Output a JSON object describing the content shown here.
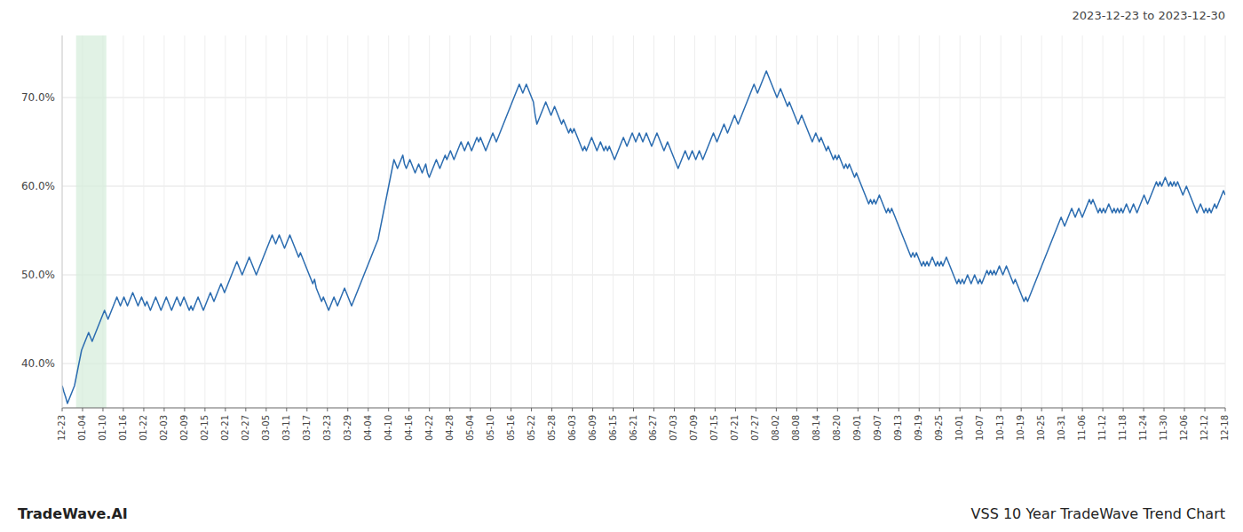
{
  "chart_data": {
    "type": "line",
    "title": "2023-12-23 to 2023-12-30",
    "annotations": [
      "TradeWave.AI",
      "VSS 10 Year TradeWave Trend Chart"
    ],
    "color": "#2b6cb0",
    "grid": true,
    "xlim": [
      0,
      659
    ],
    "xticks": [
      {
        "value": 0,
        "label": "12-23"
      },
      {
        "value": 11.56,
        "label": "01-04"
      },
      {
        "value": 23.12,
        "label": "01-10"
      },
      {
        "value": 34.68,
        "label": "01-16"
      },
      {
        "value": 46.25,
        "label": "01-22"
      },
      {
        "value": 57.81,
        "label": "02-03"
      },
      {
        "value": 69.37,
        "label": "02-09"
      },
      {
        "value": 80.93,
        "label": "02-15"
      },
      {
        "value": 92.49,
        "label": "02-21"
      },
      {
        "value": 104.05,
        "label": "02-27"
      },
      {
        "value": 115.61,
        "label": "03-05"
      },
      {
        "value": 127.18,
        "label": "03-11"
      },
      {
        "value": 138.74,
        "label": "03-17"
      },
      {
        "value": 150.3,
        "label": "03-23"
      },
      {
        "value": 161.86,
        "label": "03-29"
      },
      {
        "value": 173.42,
        "label": "04-04"
      },
      {
        "value": 184.98,
        "label": "04-10"
      },
      {
        "value": 196.54,
        "label": "04-16"
      },
      {
        "value": 208.11,
        "label": "04-22"
      },
      {
        "value": 219.67,
        "label": "04-28"
      },
      {
        "value": 231.23,
        "label": "05-04"
      },
      {
        "value": 242.79,
        "label": "05-10"
      },
      {
        "value": 254.35,
        "label": "05-16"
      },
      {
        "value": 265.91,
        "label": "05-22"
      },
      {
        "value": 277.47,
        "label": "05-28"
      },
      {
        "value": 289.04,
        "label": "06-03"
      },
      {
        "value": 300.6,
        "label": "06-09"
      },
      {
        "value": 312.16,
        "label": "06-15"
      },
      {
        "value": 323.72,
        "label": "06-21"
      },
      {
        "value": 335.28,
        "label": "06-27"
      },
      {
        "value": 346.84,
        "label": "07-03"
      },
      {
        "value": 358.4,
        "label": "07-09"
      },
      {
        "value": 369.96,
        "label": "07-15"
      },
      {
        "value": 381.53,
        "label": "07-21"
      },
      {
        "value": 393.09,
        "label": "07-27"
      },
      {
        "value": 404.65,
        "label": "08-02"
      },
      {
        "value": 416.21,
        "label": "08-08"
      },
      {
        "value": 427.77,
        "label": "08-14"
      },
      {
        "value": 439.33,
        "label": "08-20"
      },
      {
        "value": 450.89,
        "label": "09-01"
      },
      {
        "value": 462.46,
        "label": "09-07"
      },
      {
        "value": 474.02,
        "label": "09-13"
      },
      {
        "value": 485.58,
        "label": "09-19"
      },
      {
        "value": 497.14,
        "label": "09-25"
      },
      {
        "value": 508.7,
        "label": "10-01"
      },
      {
        "value": 520.26,
        "label": "10-07"
      },
      {
        "value": 531.82,
        "label": "10-13"
      },
      {
        "value": 543.39,
        "label": "10-19"
      },
      {
        "value": 554.95,
        "label": "10-25"
      },
      {
        "value": 566.51,
        "label": "10-31"
      },
      {
        "value": 578.07,
        "label": "11-06"
      },
      {
        "value": 589.63,
        "label": "11-12"
      },
      {
        "value": 601.19,
        "label": "11-18"
      },
      {
        "value": 612.75,
        "label": "11-24"
      },
      {
        "value": 624.32,
        "label": "11-30"
      },
      {
        "value": 635.88,
        "label": "12-06"
      },
      {
        "value": 647.44,
        "label": "12-12"
      },
      {
        "value": 659,
        "label": "12-18"
      }
    ],
    "ylim": [
      35,
      77
    ],
    "yticks": [
      {
        "value": 40,
        "label": "40.0%"
      },
      {
        "value": 50,
        "label": "50.0%"
      },
      {
        "value": 60,
        "label": "60.0%"
      },
      {
        "value": 70,
        "label": "70.0%"
      }
    ],
    "highlight": {
      "x": [
        7.908,
        25.042
      ],
      "color": "#d4edda"
    },
    "values": [
      37.5,
      36.8,
      36.2,
      35.5,
      36.0,
      36.5,
      37.0,
      37.5,
      38.5,
      39.5,
      40.5,
      41.5,
      42.0,
      42.5,
      43.0,
      43.5,
      43.0,
      42.5,
      43.0,
      43.5,
      44.0,
      44.5,
      45.0,
      45.5,
      46.0,
      45.5,
      45.0,
      45.5,
      46.0,
      46.5,
      47.0,
      47.5,
      47.0,
      46.5,
      47.0,
      47.5,
      47.0,
      46.5,
      47.0,
      47.5,
      48.0,
      47.5,
      47.0,
      46.5,
      47.0,
      47.5,
      47.0,
      46.5,
      47.0,
      46.5,
      46.0,
      46.5,
      47.0,
      47.5,
      47.0,
      46.5,
      46.0,
      46.5,
      47.0,
      47.5,
      47.0,
      46.5,
      46.0,
      46.5,
      47.0,
      47.5,
      47.0,
      46.5,
      47.0,
      47.5,
      47.0,
      46.5,
      46.0,
      46.5,
      46.0,
      46.5,
      47.0,
      47.5,
      47.0,
      46.5,
      46.0,
      46.5,
      47.0,
      47.5,
      48.0,
      47.5,
      47.0,
      47.5,
      48.0,
      48.5,
      49.0,
      48.5,
      48.0,
      48.5,
      49.0,
      49.5,
      50.0,
      50.5,
      51.0,
      51.5,
      51.0,
      50.5,
      50.0,
      50.5,
      51.0,
      51.5,
      52.0,
      51.5,
      51.0,
      50.5,
      50.0,
      50.5,
      51.0,
      51.5,
      52.0,
      52.5,
      53.0,
      53.5,
      54.0,
      54.5,
      54.0,
      53.5,
      54.0,
      54.5,
      54.0,
      53.5,
      53.0,
      53.5,
      54.0,
      54.5,
      54.0,
      53.5,
      53.0,
      52.5,
      52.0,
      52.5,
      52.0,
      51.5,
      51.0,
      50.5,
      50.0,
      49.5,
      49.0,
      49.5,
      48.5,
      48.0,
      47.5,
      47.0,
      47.5,
      47.0,
      46.5,
      46.0,
      46.5,
      47.0,
      47.5,
      47.0,
      46.5,
      47.0,
      47.5,
      48.0,
      48.5,
      48.0,
      47.5,
      47.0,
      46.5,
      47.0,
      47.5,
      48.0,
      48.5,
      49.0,
      49.5,
      50.0,
      50.5,
      51.0,
      51.5,
      52.0,
      52.5,
      53.0,
      53.5,
      54.0,
      55.0,
      56.0,
      57.0,
      58.0,
      59.0,
      60.0,
      61.0,
      62.0,
      63.0,
      62.5,
      62.0,
      62.5,
      63.0,
      63.5,
      62.5,
      62.0,
      62.5,
      63.0,
      62.5,
      62.0,
      61.5,
      62.0,
      62.5,
      62.0,
      61.5,
      62.0,
      62.5,
      61.5,
      61.0,
      61.5,
      62.0,
      62.5,
      63.0,
      62.5,
      62.0,
      62.5,
      63.0,
      63.5,
      63.0,
      63.5,
      64.0,
      63.5,
      63.0,
      63.5,
      64.0,
      64.5,
      65.0,
      64.5,
      64.0,
      64.5,
      65.0,
      64.5,
      64.0,
      64.5,
      65.0,
      65.5,
      65.0,
      65.5,
      65.0,
      64.5,
      64.0,
      64.5,
      65.0,
      65.5,
      66.0,
      65.5,
      65.0,
      65.5,
      66.0,
      66.5,
      67.0,
      67.5,
      68.0,
      68.5,
      69.0,
      69.5,
      70.0,
      70.5,
      71.0,
      71.5,
      71.0,
      70.5,
      71.0,
      71.5,
      71.0,
      70.5,
      70.0,
      69.5,
      68.0,
      67.0,
      67.5,
      68.0,
      68.5,
      69.0,
      69.5,
      69.0,
      68.5,
      68.0,
      68.5,
      69.0,
      68.5,
      68.0,
      67.5,
      67.0,
      67.5,
      67.0,
      66.5,
      66.0,
      66.5,
      66.0,
      66.5,
      66.0,
      65.5,
      65.0,
      64.5,
      64.0,
      64.5,
      64.0,
      64.5,
      65.0,
      65.5,
      65.0,
      64.5,
      64.0,
      64.5,
      65.0,
      64.5,
      64.0,
      64.5,
      64.0,
      64.5,
      64.0,
      63.5,
      63.0,
      63.5,
      64.0,
      64.5,
      65.0,
      65.5,
      65.0,
      64.5,
      65.0,
      65.5,
      66.0,
      65.5,
      65.0,
      65.5,
      66.0,
      65.5,
      65.0,
      65.5,
      66.0,
      65.5,
      65.0,
      64.5,
      65.0,
      65.5,
      66.0,
      65.5,
      65.0,
      64.5,
      64.0,
      64.5,
      65.0,
      64.5,
      64.0,
      63.5,
      63.0,
      62.5,
      62.0,
      62.5,
      63.0,
      63.5,
      64.0,
      63.5,
      63.0,
      63.5,
      64.0,
      63.5,
      63.0,
      63.5,
      64.0,
      63.5,
      63.0,
      63.5,
      64.0,
      64.5,
      65.0,
      65.5,
      66.0,
      65.5,
      65.0,
      65.5,
      66.0,
      66.5,
      67.0,
      66.5,
      66.0,
      66.5,
      67.0,
      67.5,
      68.0,
      67.5,
      67.0,
      67.5,
      68.0,
      68.5,
      69.0,
      69.5,
      70.0,
      70.5,
      71.0,
      71.5,
      71.0,
      70.5,
      71.0,
      71.5,
      72.0,
      72.5,
      73.0,
      72.5,
      72.0,
      71.5,
      71.0,
      70.5,
      70.0,
      70.5,
      71.0,
      70.5,
      70.0,
      69.5,
      69.0,
      69.5,
      69.0,
      68.5,
      68.0,
      67.5,
      67.0,
      67.5,
      68.0,
      67.5,
      67.0,
      66.5,
      66.0,
      65.5,
      65.0,
      65.5,
      66.0,
      65.5,
      65.0,
      65.5,
      65.0,
      64.5,
      64.0,
      64.5,
      64.0,
      63.5,
      63.0,
      63.5,
      63.0,
      63.5,
      63.0,
      62.5,
      62.0,
      62.5,
      62.0,
      62.5,
      62.0,
      61.5,
      61.0,
      61.5,
      61.0,
      60.5,
      60.0,
      59.5,
      59.0,
      58.5,
      58.0,
      58.5,
      58.0,
      58.5,
      58.0,
      58.5,
      59.0,
      58.5,
      58.0,
      57.5,
      57.0,
      57.5,
      57.0,
      57.5,
      57.0,
      56.5,
      56.0,
      55.5,
      55.0,
      54.5,
      54.0,
      53.5,
      53.0,
      52.5,
      52.0,
      52.5,
      52.0,
      52.5,
      52.0,
      51.5,
      51.0,
      51.5,
      51.0,
      51.5,
      51.0,
      51.5,
      52.0,
      51.5,
      51.0,
      51.5,
      51.0,
      51.5,
      51.0,
      51.5,
      52.0,
      51.5,
      51.0,
      50.5,
      50.0,
      49.5,
      49.0,
      49.5,
      49.0,
      49.5,
      49.0,
      49.5,
      50.0,
      49.5,
      49.0,
      49.5,
      50.0,
      49.5,
      49.0,
      49.5,
      49.0,
      49.5,
      50.0,
      50.5,
      50.0,
      50.5,
      50.0,
      50.5,
      50.0,
      50.5,
      51.0,
      50.5,
      50.0,
      50.5,
      51.0,
      50.5,
      50.0,
      49.5,
      49.0,
      49.5,
      49.0,
      48.5,
      48.0,
      47.5,
      47.0,
      47.5,
      47.0,
      47.5,
      48.0,
      48.5,
      49.0,
      49.5,
      50.0,
      50.5,
      51.0,
      51.5,
      52.0,
      52.5,
      53.0,
      53.5,
      54.0,
      54.5,
      55.0,
      55.5,
      56.0,
      56.5,
      56.0,
      55.5,
      56.0,
      56.5,
      57.0,
      57.5,
      57.0,
      56.5,
      57.0,
      57.5,
      57.0,
      56.5,
      57.0,
      57.5,
      58.0,
      58.5,
      58.0,
      58.5,
      58.0,
      57.5,
      57.0,
      57.5,
      57.0,
      57.5,
      57.0,
      57.5,
      58.0,
      57.5,
      57.0,
      57.5,
      57.0,
      57.5,
      57.0,
      57.5,
      57.0,
      57.5,
      58.0,
      57.5,
      57.0,
      57.5,
      58.0,
      57.5,
      57.0,
      57.5,
      58.0,
      58.5,
      59.0,
      58.5,
      58.0,
      58.5,
      59.0,
      59.5,
      60.0,
      60.5,
      60.0,
      60.5,
      60.0,
      60.5,
      61.0,
      60.5,
      60.0,
      60.5,
      60.0,
      60.5,
      60.0,
      60.5,
      60.0,
      59.5,
      59.0,
      59.5,
      60.0,
      59.5,
      59.0,
      58.5,
      58.0,
      57.5,
      57.0,
      57.5,
      58.0,
      57.5,
      57.0,
      57.5,
      57.0,
      57.5,
      57.0,
      57.5,
      58.0,
      57.5,
      58.0,
      58.5,
      59.0,
      59.5,
      59.0
    ]
  }
}
